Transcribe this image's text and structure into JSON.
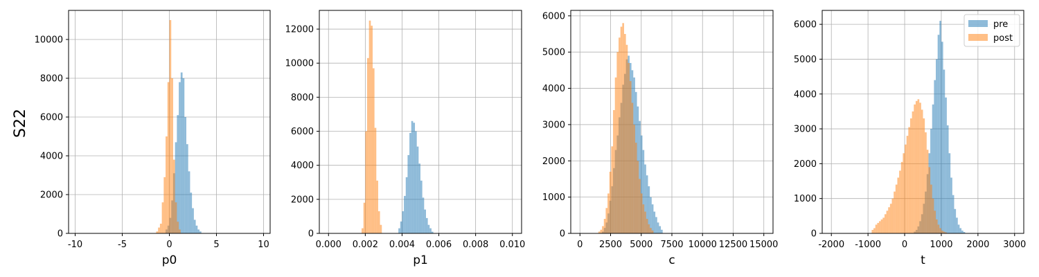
{
  "figure": {
    "row_label": "S22",
    "legend": {
      "placement": "top-right",
      "entries": [
        "pre",
        "post"
      ]
    }
  },
  "chart_data": [
    {
      "type": "histogram",
      "xlabel": "p0",
      "xlim": [
        -10.7,
        10.7
      ],
      "ylim": [
        0,
        11500
      ],
      "xticks": [
        -10,
        -5,
        0,
        5,
        10
      ],
      "yticks": [
        0,
        2000,
        4000,
        6000,
        8000,
        10000
      ],
      "grid": true,
      "series": [
        {
          "name": "pre",
          "color": "#1f77b4",
          "alpha": 0.5,
          "bin_width": 0.2,
          "bins": [
            [
              -0.4,
              200
            ],
            [
              -0.2,
              400
            ],
            [
              0.0,
              800
            ],
            [
              0.2,
              1700
            ],
            [
              0.4,
              3100
            ],
            [
              0.6,
              4700
            ],
            [
              0.8,
              6100
            ],
            [
              1.0,
              7800
            ],
            [
              1.2,
              8300
            ],
            [
              1.4,
              8000
            ],
            [
              1.6,
              6000
            ],
            [
              1.8,
              4600
            ],
            [
              2.0,
              3200
            ],
            [
              2.2,
              2100
            ],
            [
              2.4,
              1300
            ],
            [
              2.6,
              700
            ],
            [
              2.8,
              400
            ],
            [
              3.0,
              200
            ],
            [
              3.2,
              100
            ]
          ]
        },
        {
          "name": "post",
          "color": "#ff7f0e",
          "alpha": 0.5,
          "bin_width": 0.2,
          "bins": [
            [
              -1.4,
              100
            ],
            [
              -1.2,
              300
            ],
            [
              -1.0,
              500
            ],
            [
              -0.8,
              1600
            ],
            [
              -0.6,
              2900
            ],
            [
              -0.4,
              5000
            ],
            [
              -0.2,
              7800
            ],
            [
              0.0,
              11000
            ],
            [
              0.2,
              8000
            ],
            [
              0.4,
              3800
            ],
            [
              0.6,
              1600
            ],
            [
              0.8,
              600
            ],
            [
              1.0,
              200
            ]
          ]
        }
      ]
    },
    {
      "type": "histogram",
      "xlabel": "p1",
      "xlim": [
        -0.0005,
        0.0105
      ],
      "ylim": [
        0,
        13100
      ],
      "xticks": [
        0.0,
        0.002,
        0.004,
        0.006,
        0.008,
        0.01
      ],
      "xtick_labels": [
        "0.000",
        "0.002",
        "0.004",
        "0.006",
        "0.008",
        "0.010"
      ],
      "yticks": [
        0,
        2000,
        4000,
        6000,
        8000,
        10000,
        12000
      ],
      "grid": true,
      "series": [
        {
          "name": "pre",
          "color": "#1f77b4",
          "alpha": 0.5,
          "bin_width": 0.0001,
          "bins": [
            [
              0.0038,
              300
            ],
            [
              0.0039,
              700
            ],
            [
              0.004,
              1300
            ],
            [
              0.0041,
              2200
            ],
            [
              0.0042,
              3300
            ],
            [
              0.0043,
              4600
            ],
            [
              0.0044,
              5900
            ],
            [
              0.0045,
              6600
            ],
            [
              0.0046,
              6500
            ],
            [
              0.0047,
              6000
            ],
            [
              0.0048,
              5100
            ],
            [
              0.0049,
              4100
            ],
            [
              0.005,
              3100
            ],
            [
              0.0051,
              2100
            ],
            [
              0.0052,
              1400
            ],
            [
              0.0053,
              900
            ],
            [
              0.0054,
              500
            ],
            [
              0.0055,
              300
            ],
            [
              0.0056,
              100
            ]
          ]
        },
        {
          "name": "post",
          "color": "#ff7f0e",
          "alpha": 0.5,
          "bin_width": 0.0001,
          "bins": [
            [
              0.0018,
              300
            ],
            [
              0.0019,
              1800
            ],
            [
              0.002,
              6000
            ],
            [
              0.0021,
              10300
            ],
            [
              0.0022,
              12500
            ],
            [
              0.0023,
              12200
            ],
            [
              0.0024,
              9700
            ],
            [
              0.0025,
              6200
            ],
            [
              0.0026,
              3100
            ],
            [
              0.0027,
              1300
            ],
            [
              0.0028,
              500
            ]
          ]
        }
      ]
    },
    {
      "type": "histogram",
      "xlabel": "c",
      "xlim": [
        -750,
        15750
      ],
      "ylim": [
        0,
        6150
      ],
      "xticks": [
        0,
        2500,
        5000,
        7500,
        10000,
        12500,
        15000
      ],
      "yticks": [
        0,
        1000,
        2000,
        3000,
        4000,
        5000,
        6000
      ],
      "grid": true,
      "series": [
        {
          "name": "pre",
          "color": "#1f77b4",
          "alpha": 0.5,
          "bin_width": 150,
          "bins": [
            [
              1800,
              50
            ],
            [
              1950,
              150
            ],
            [
              2100,
              300
            ],
            [
              2250,
              550
            ],
            [
              2400,
              900
            ],
            [
              2550,
              1300
            ],
            [
              2700,
              1800
            ],
            [
              2850,
              2300
            ],
            [
              3000,
              2700
            ],
            [
              3150,
              3200
            ],
            [
              3300,
              3600
            ],
            [
              3450,
              4100
            ],
            [
              3600,
              4400
            ],
            [
              3750,
              4800
            ],
            [
              3900,
              4900
            ],
            [
              4050,
              4700
            ],
            [
              4200,
              4500
            ],
            [
              4350,
              4300
            ],
            [
              4500,
              3900
            ],
            [
              4650,
              3500
            ],
            [
              4800,
              3100
            ],
            [
              4950,
              2700
            ],
            [
              5100,
              2300
            ],
            [
              5250,
              1900
            ],
            [
              5400,
              1600
            ],
            [
              5550,
              1300
            ],
            [
              5700,
              1000
            ],
            [
              5850,
              800
            ],
            [
              6000,
              600
            ],
            [
              6150,
              450
            ],
            [
              6300,
              300
            ],
            [
              6450,
              200
            ],
            [
              6600,
              100
            ]
          ]
        },
        {
          "name": "post",
          "color": "#ff7f0e",
          "alpha": 0.5,
          "bin_width": 150,
          "bins": [
            [
              1500,
              50
            ],
            [
              1650,
              100
            ],
            [
              1800,
              200
            ],
            [
              1950,
              400
            ],
            [
              2100,
              700
            ],
            [
              2250,
              1100
            ],
            [
              2400,
              1700
            ],
            [
              2550,
              2400
            ],
            [
              2700,
              3400
            ],
            [
              2850,
              4300
            ],
            [
              3000,
              5000
            ],
            [
              3150,
              5400
            ],
            [
              3300,
              5700
            ],
            [
              3450,
              5800
            ],
            [
              3600,
              5500
            ],
            [
              3750,
              5200
            ],
            [
              3900,
              4700
            ],
            [
              4050,
              4200
            ],
            [
              4200,
              3600
            ],
            [
              4350,
              3000
            ],
            [
              4500,
              2500
            ],
            [
              4650,
              2000
            ],
            [
              4800,
              1500
            ],
            [
              4950,
              1100
            ],
            [
              5100,
              800
            ],
            [
              5250,
              600
            ],
            [
              5400,
              400
            ],
            [
              5550,
              250
            ],
            [
              5700,
              150
            ],
            [
              5850,
              80
            ]
          ]
        }
      ]
    },
    {
      "type": "histogram",
      "xlabel": "t",
      "xlim": [
        -2250,
        3250
      ],
      "ylim": [
        0,
        6400
      ],
      "xticks": [
        -2000,
        -1000,
        0,
        1000,
        2000,
        3000
      ],
      "yticks": [
        0,
        1000,
        2000,
        3000,
        4000,
        5000,
        6000
      ],
      "grid": true,
      "series": [
        {
          "name": "pre",
          "color": "#1f77b4",
          "alpha": 0.5,
          "bin_width": 50,
          "bins": [
            [
              250,
              50
            ],
            [
              300,
              100
            ],
            [
              350,
              200
            ],
            [
              400,
              350
            ],
            [
              450,
              550
            ],
            [
              500,
              850
            ],
            [
              550,
              1200
            ],
            [
              600,
              1700
            ],
            [
              650,
              2300
            ],
            [
              700,
              3000
            ],
            [
              750,
              3700
            ],
            [
              800,
              4400
            ],
            [
              850,
              5000
            ],
            [
              900,
              5700
            ],
            [
              950,
              6100
            ],
            [
              1000,
              5500
            ],
            [
              1050,
              4700
            ],
            [
              1100,
              3900
            ],
            [
              1150,
              3100
            ],
            [
              1200,
              2300
            ],
            [
              1250,
              1600
            ],
            [
              1300,
              1100
            ],
            [
              1350,
              700
            ],
            [
              1400,
              450
            ],
            [
              1450,
              250
            ],
            [
              1500,
              150
            ],
            [
              1550,
              80
            ],
            [
              1600,
              40
            ]
          ]
        },
        {
          "name": "post",
          "color": "#ff7f0e",
          "alpha": 0.5,
          "bin_width": 50,
          "bins": [
            [
              -900,
              100
            ],
            [
              -850,
              150
            ],
            [
              -800,
              250
            ],
            [
              -750,
              300
            ],
            [
              -700,
              350
            ],
            [
              -650,
              400
            ],
            [
              -600,
              450
            ],
            [
              -550,
              550
            ],
            [
              -500,
              650
            ],
            [
              -450,
              750
            ],
            [
              -400,
              850
            ],
            [
              -350,
              1000
            ],
            [
              -300,
              1200
            ],
            [
              -250,
              1400
            ],
            [
              -200,
              1600
            ],
            [
              -150,
              1800
            ],
            [
              -100,
              2050
            ],
            [
              -50,
              2300
            ],
            [
              0,
              2550
            ],
            [
              50,
              2800
            ],
            [
              100,
              3050
            ],
            [
              150,
              3300
            ],
            [
              200,
              3500
            ],
            [
              250,
              3700
            ],
            [
              300,
              3800
            ],
            [
              350,
              3850
            ],
            [
              400,
              3750
            ],
            [
              450,
              3550
            ],
            [
              500,
              3300
            ],
            [
              550,
              2900
            ],
            [
              600,
              2400
            ],
            [
              650,
              1900
            ],
            [
              700,
              1400
            ],
            [
              750,
              1000
            ],
            [
              800,
              650
            ],
            [
              850,
              400
            ],
            [
              900,
              250
            ],
            [
              950,
              150
            ],
            [
              1000,
              80
            ],
            [
              1050,
              50
            ],
            [
              1100,
              30
            ]
          ]
        }
      ]
    }
  ]
}
